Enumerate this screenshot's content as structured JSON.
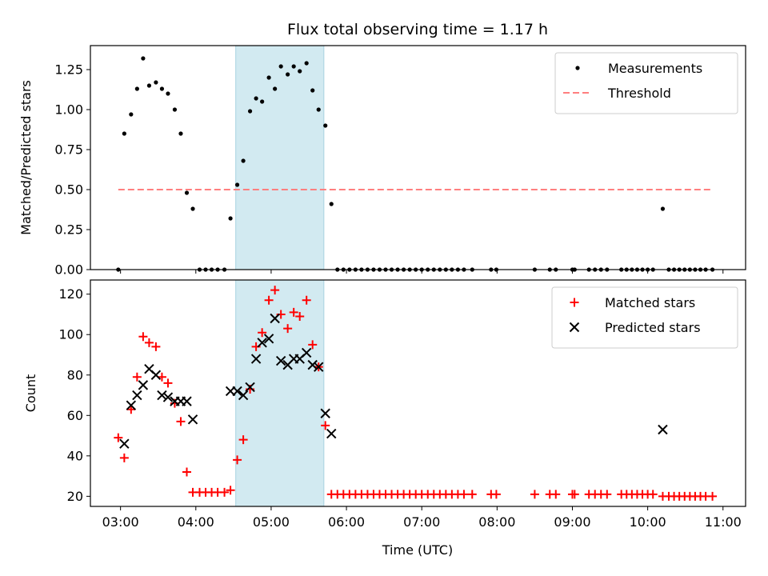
{
  "chart_data": {
    "title": "Flux total observing time = 1.17 h",
    "xlabel": "Time (UTC)",
    "x_unit": "hours UTC",
    "xlim": [
      2.6,
      11.3
    ],
    "xticks": [
      3,
      4,
      5,
      6,
      7,
      8,
      9,
      10,
      11
    ],
    "xtick_labels": [
      "03:00",
      "04:00",
      "05:00",
      "06:00",
      "07:00",
      "08:00",
      "09:00",
      "10:00",
      "11:00"
    ],
    "shaded_span": [
      4.53,
      5.7
    ],
    "shade_color": "#d2eaf1",
    "panels": [
      {
        "type": "scatter",
        "ylabel": "Matched/Predicted stars",
        "ylim": [
          0,
          1.4
        ],
        "yticks": [
          0,
          0.25,
          0.5,
          0.75,
          1.0,
          1.25
        ],
        "ytick_labels": [
          "0.00",
          "0.25",
          "0.50",
          "0.75",
          "1.00",
          "1.25"
        ],
        "legend_position": "top-right",
        "series": [
          {
            "name": "Measurements",
            "marker": "dot",
            "color": "#000000",
            "points": [
              [
                2.97,
                0.0
              ],
              [
                3.05,
                0.85
              ],
              [
                3.14,
                0.97
              ],
              [
                3.22,
                1.13
              ],
              [
                3.3,
                1.32
              ],
              [
                3.38,
                1.15
              ],
              [
                3.47,
                1.17
              ],
              [
                3.55,
                1.13
              ],
              [
                3.63,
                1.1
              ],
              [
                3.72,
                1.0
              ],
              [
                3.8,
                0.85
              ],
              [
                3.88,
                0.48
              ],
              [
                3.96,
                0.38
              ],
              [
                4.05,
                0.0
              ],
              [
                4.13,
                0.0
              ],
              [
                4.21,
                0.0
              ],
              [
                4.29,
                0.0
              ],
              [
                4.38,
                0.0
              ],
              [
                4.46,
                0.32
              ],
              [
                4.55,
                0.53
              ],
              [
                4.63,
                0.68
              ],
              [
                4.72,
                0.99
              ],
              [
                4.8,
                1.07
              ],
              [
                4.88,
                1.05
              ],
              [
                4.97,
                1.2
              ],
              [
                5.05,
                1.13
              ],
              [
                5.13,
                1.27
              ],
              [
                5.22,
                1.22
              ],
              [
                5.3,
                1.27
              ],
              [
                5.38,
                1.24
              ],
              [
                5.47,
                1.29
              ],
              [
                5.55,
                1.12
              ],
              [
                5.63,
                1.0
              ],
              [
                5.72,
                0.9
              ],
              [
                5.8,
                0.41
              ],
              [
                5.88,
                0.0
              ],
              [
                5.96,
                0.0
              ],
              [
                6.04,
                0.0
              ],
              [
                6.12,
                0.0
              ],
              [
                6.2,
                0.0
              ],
              [
                6.28,
                0.0
              ],
              [
                6.36,
                0.0
              ],
              [
                6.44,
                0.0
              ],
              [
                6.52,
                0.0
              ],
              [
                6.6,
                0.0
              ],
              [
                6.68,
                0.0
              ],
              [
                6.76,
                0.0
              ],
              [
                6.84,
                0.0
              ],
              [
                6.92,
                0.0
              ],
              [
                7.0,
                0.0
              ],
              [
                7.08,
                0.0
              ],
              [
                7.16,
                0.0
              ],
              [
                7.24,
                0.0
              ],
              [
                7.32,
                0.0
              ],
              [
                7.4,
                0.0
              ],
              [
                7.48,
                0.0
              ],
              [
                7.56,
                0.0
              ],
              [
                7.67,
                0.0
              ],
              [
                7.92,
                0.0
              ],
              [
                7.99,
                0.0
              ],
              [
                8.5,
                0.0
              ],
              [
                8.7,
                0.0
              ],
              [
                8.78,
                0.0
              ],
              [
                9.0,
                0.0
              ],
              [
                9.03,
                0.0
              ],
              [
                9.22,
                0.0
              ],
              [
                9.3,
                0.0
              ],
              [
                9.38,
                0.0
              ],
              [
                9.46,
                0.0
              ],
              [
                9.65,
                0.0
              ],
              [
                9.72,
                0.0
              ],
              [
                9.79,
                0.0
              ],
              [
                9.86,
                0.0
              ],
              [
                9.93,
                0.0
              ],
              [
                10.0,
                0.0
              ],
              [
                10.07,
                0.0
              ],
              [
                10.2,
                0.38
              ],
              [
                10.28,
                0.0
              ],
              [
                10.35,
                0.0
              ],
              [
                10.42,
                0.0
              ],
              [
                10.49,
                0.0
              ],
              [
                10.56,
                0.0
              ],
              [
                10.63,
                0.0
              ],
              [
                10.7,
                0.0
              ],
              [
                10.77,
                0.0
              ],
              [
                10.86,
                0.0
              ]
            ]
          },
          {
            "name": "Threshold",
            "marker": "dashed-line",
            "color": "#ff7f7f",
            "points": [
              [
                2.97,
                0.5
              ],
              [
                10.86,
                0.5
              ]
            ]
          }
        ]
      },
      {
        "type": "scatter",
        "ylabel": "Count",
        "ylim": [
          15,
          127
        ],
        "yticks": [
          20,
          40,
          60,
          80,
          100,
          120
        ],
        "ytick_labels": [
          "20",
          "40",
          "60",
          "80",
          "100",
          "120"
        ],
        "legend_position": "top-right",
        "series": [
          {
            "name": "Matched stars",
            "marker": "plus",
            "color": "#ff0000",
            "points": [
              [
                2.97,
                49
              ],
              [
                3.05,
                39
              ],
              [
                3.14,
                63
              ],
              [
                3.22,
                79
              ],
              [
                3.3,
                99
              ],
              [
                3.38,
                96
              ],
              [
                3.47,
                94
              ],
              [
                3.55,
                79
              ],
              [
                3.63,
                76
              ],
              [
                3.72,
                66
              ],
              [
                3.8,
                57
              ],
              [
                3.88,
                32
              ],
              [
                3.96,
                22
              ],
              [
                4.05,
                22
              ],
              [
                4.13,
                22
              ],
              [
                4.21,
                22
              ],
              [
                4.29,
                22
              ],
              [
                4.38,
                22
              ],
              [
                4.46,
                23
              ],
              [
                4.55,
                38
              ],
              [
                4.63,
                48
              ],
              [
                4.72,
                73
              ],
              [
                4.8,
                94
              ],
              [
                4.88,
                101
              ],
              [
                4.97,
                117
              ],
              [
                5.05,
                122
              ],
              [
                5.13,
                110
              ],
              [
                5.22,
                103
              ],
              [
                5.3,
                111
              ],
              [
                5.38,
                109
              ],
              [
                5.47,
                117
              ],
              [
                5.55,
                95
              ],
              [
                5.63,
                84
              ],
              [
                5.72,
                55
              ],
              [
                5.8,
                21
              ],
              [
                5.88,
                21
              ],
              [
                5.96,
                21
              ],
              [
                6.04,
                21
              ],
              [
                6.12,
                21
              ],
              [
                6.2,
                21
              ],
              [
                6.28,
                21
              ],
              [
                6.36,
                21
              ],
              [
                6.44,
                21
              ],
              [
                6.52,
                21
              ],
              [
                6.6,
                21
              ],
              [
                6.68,
                21
              ],
              [
                6.76,
                21
              ],
              [
                6.84,
                21
              ],
              [
                6.92,
                21
              ],
              [
                7.0,
                21
              ],
              [
                7.08,
                21
              ],
              [
                7.16,
                21
              ],
              [
                7.24,
                21
              ],
              [
                7.32,
                21
              ],
              [
                7.4,
                21
              ],
              [
                7.48,
                21
              ],
              [
                7.56,
                21
              ],
              [
                7.67,
                21
              ],
              [
                7.92,
                21
              ],
              [
                7.99,
                21
              ],
              [
                8.5,
                21
              ],
              [
                8.7,
                21
              ],
              [
                8.78,
                21
              ],
              [
                9.0,
                21
              ],
              [
                9.03,
                21
              ],
              [
                9.22,
                21
              ],
              [
                9.3,
                21
              ],
              [
                9.38,
                21
              ],
              [
                9.46,
                21
              ],
              [
                9.65,
                21
              ],
              [
                9.72,
                21
              ],
              [
                9.79,
                21
              ],
              [
                9.86,
                21
              ],
              [
                9.93,
                21
              ],
              [
                10.0,
                21
              ],
              [
                10.07,
                21
              ],
              [
                10.2,
                20
              ],
              [
                10.28,
                20
              ],
              [
                10.35,
                20
              ],
              [
                10.42,
                20
              ],
              [
                10.49,
                20
              ],
              [
                10.56,
                20
              ],
              [
                10.63,
                20
              ],
              [
                10.7,
                20
              ],
              [
                10.77,
                20
              ],
              [
                10.86,
                20
              ]
            ]
          },
          {
            "name": "Predicted stars",
            "marker": "x",
            "color": "#000000",
            "points": [
              [
                3.05,
                46
              ],
              [
                3.14,
                65
              ],
              [
                3.22,
                70
              ],
              [
                3.3,
                75
              ],
              [
                3.38,
                83
              ],
              [
                3.47,
                80
              ],
              [
                3.55,
                70
              ],
              [
                3.63,
                69
              ],
              [
                3.72,
                67
              ],
              [
                3.8,
                67
              ],
              [
                3.88,
                67
              ],
              [
                3.96,
                58
              ],
              [
                4.46,
                72
              ],
              [
                4.55,
                72
              ],
              [
                4.63,
                70
              ],
              [
                4.72,
                74
              ],
              [
                4.8,
                88
              ],
              [
                4.88,
                96
              ],
              [
                4.97,
                98
              ],
              [
                5.05,
                108
              ],
              [
                5.13,
                87
              ],
              [
                5.22,
                85
              ],
              [
                5.3,
                88
              ],
              [
                5.38,
                88
              ],
              [
                5.47,
                91
              ],
              [
                5.55,
                85
              ],
              [
                5.63,
                84
              ],
              [
                5.72,
                61
              ],
              [
                5.8,
                51
              ],
              [
                10.2,
                53
              ]
            ]
          }
        ]
      }
    ]
  }
}
